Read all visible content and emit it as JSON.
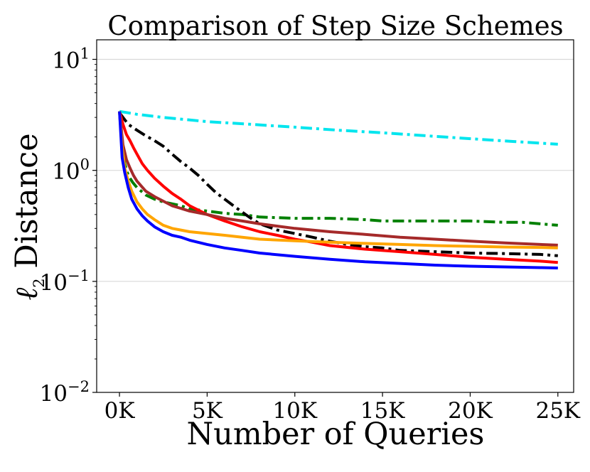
{
  "chart_data": {
    "type": "line",
    "title": "Comparison of Step Size Schemes",
    "xlabel": "Number of Queries",
    "ylabel_symbol": "ℓ",
    "ylabel_subscript": "2",
    "ylabel_text": " Distance",
    "xlim": [
      -1300,
      25900
    ],
    "ylim": [
      0.01,
      15
    ],
    "yscale": "log",
    "grid": "horizontal at major y ticks",
    "x_ticks": [
      {
        "value": 0,
        "label": "0K"
      },
      {
        "value": 5000,
        "label": "5K"
      },
      {
        "value": 10000,
        "label": "10K"
      },
      {
        "value": 15000,
        "label": "15K"
      },
      {
        "value": 20000,
        "label": "20K"
      },
      {
        "value": 25000,
        "label": "25K"
      }
    ],
    "y_ticks": [
      {
        "value": 10,
        "base": "10",
        "exp": "1"
      },
      {
        "value": 1,
        "base": "10",
        "exp": "0"
      },
      {
        "value": 0.1,
        "base": "10",
        "exp": "−1"
      },
      {
        "value": 0.01,
        "base": "10",
        "exp": "−2"
      }
    ],
    "series": [
      {
        "id": "cyan",
        "color": "#00e5ee",
        "dash": "dashdot",
        "x": [
          0,
          1000,
          2500,
          5000,
          7500,
          10000,
          12500,
          15000,
          17500,
          20000,
          22500,
          25000
        ],
        "y": [
          3.4,
          3.2,
          3.0,
          2.75,
          2.6,
          2.45,
          2.3,
          2.18,
          2.05,
          1.93,
          1.82,
          1.72
        ]
      },
      {
        "id": "green",
        "color": "#008000",
        "dash": "dashdot",
        "x": [
          0,
          150,
          300,
          500,
          750,
          1000,
          1500,
          2000,
          2500,
          3000,
          3500,
          4000,
          5000,
          6000,
          7000,
          8000,
          10000,
          12000,
          14000,
          15000,
          17500,
          20000,
          22000,
          23000,
          24000,
          25000
        ],
        "y": [
          3.4,
          1.6,
          1.15,
          0.9,
          0.78,
          0.7,
          0.6,
          0.55,
          0.52,
          0.5,
          0.48,
          0.45,
          0.43,
          0.41,
          0.4,
          0.38,
          0.37,
          0.37,
          0.36,
          0.35,
          0.35,
          0.35,
          0.34,
          0.34,
          0.33,
          0.32
        ]
      },
      {
        "id": "black",
        "color": "#000000",
        "dash": "dashdot",
        "x": [
          0,
          500,
          1000,
          1500,
          2000,
          2500,
          3000,
          3500,
          4000,
          4500,
          5000,
          5500,
          6000,
          6500,
          7000,
          7500,
          8000,
          9000,
          10000,
          11000,
          12000,
          13000,
          14000,
          15000,
          16000,
          18000,
          20000,
          22000,
          24000,
          25000
        ],
        "y": [
          3.3,
          2.6,
          2.3,
          2.05,
          1.85,
          1.65,
          1.4,
          1.2,
          1.05,
          0.9,
          0.75,
          0.63,
          0.55,
          0.48,
          0.42,
          0.37,
          0.33,
          0.29,
          0.27,
          0.25,
          0.23,
          0.215,
          0.205,
          0.2,
          0.19,
          0.185,
          0.18,
          0.178,
          0.175,
          0.17
        ]
      },
      {
        "id": "red",
        "color": "#ff0000",
        "dash": "solid",
        "x": [
          0,
          200,
          400,
          600,
          800,
          1000,
          1300,
          1600,
          2000,
          2500,
          3000,
          3500,
          4000,
          5000,
          6000,
          7000,
          8000,
          9000,
          10000,
          11000,
          12000,
          14000,
          16000,
          18000,
          20000,
          22000,
          24000,
          25000
        ],
        "y": [
          3.4,
          2.6,
          2.1,
          1.85,
          1.6,
          1.4,
          1.15,
          1.0,
          0.85,
          0.72,
          0.62,
          0.55,
          0.48,
          0.4,
          0.35,
          0.31,
          0.28,
          0.26,
          0.24,
          0.225,
          0.21,
          0.195,
          0.185,
          0.175,
          0.165,
          0.158,
          0.152,
          0.148
        ]
      },
      {
        "id": "brown",
        "color": "#a52a2a",
        "dash": "solid",
        "x": [
          0,
          200,
          400,
          600,
          800,
          1000,
          1500,
          2000,
          3000,
          4000,
          5000,
          6000,
          7000,
          8000,
          10000,
          12000,
          14000,
          16000,
          18000,
          20000,
          22000,
          24000,
          25000
        ],
        "y": [
          3.4,
          1.7,
          1.25,
          1.05,
          0.9,
          0.8,
          0.65,
          0.58,
          0.48,
          0.43,
          0.4,
          0.37,
          0.35,
          0.33,
          0.3,
          0.28,
          0.265,
          0.25,
          0.24,
          0.23,
          0.222,
          0.215,
          0.212
        ]
      },
      {
        "id": "orange",
        "color": "#ffa500",
        "dash": "solid",
        "x": [
          0,
          150,
          300,
          500,
          700,
          1000,
          1300,
          1600,
          2000,
          2500,
          3000,
          3500,
          4000,
          5000,
          6000,
          7000,
          8000,
          10000,
          12000,
          14000,
          16000,
          18000,
          20000,
          22000,
          24000,
          25000
        ],
        "y": [
          3.4,
          1.6,
          1.05,
          0.8,
          0.65,
          0.52,
          0.45,
          0.4,
          0.36,
          0.32,
          0.3,
          0.29,
          0.28,
          0.27,
          0.26,
          0.25,
          0.24,
          0.232,
          0.225,
          0.22,
          0.215,
          0.21,
          0.207,
          0.204,
          0.202,
          0.2
        ]
      },
      {
        "id": "blue",
        "color": "#0000ff",
        "dash": "solid",
        "x": [
          0,
          150,
          300,
          500,
          700,
          1000,
          1300,
          1600,
          2000,
          2500,
          3000,
          3500,
          4000,
          5000,
          6000,
          7000,
          8000,
          10000,
          12000,
          14000,
          16000,
          18000,
          20000,
          22000,
          24000,
          25000
        ],
        "y": [
          3.4,
          1.3,
          0.95,
          0.7,
          0.55,
          0.45,
          0.39,
          0.35,
          0.31,
          0.28,
          0.26,
          0.25,
          0.235,
          0.215,
          0.2,
          0.19,
          0.18,
          0.168,
          0.158,
          0.15,
          0.145,
          0.14,
          0.137,
          0.135,
          0.133,
          0.132
        ]
      }
    ]
  }
}
